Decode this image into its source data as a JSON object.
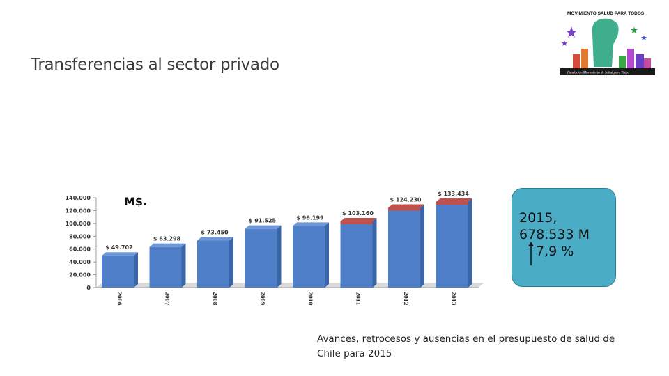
{
  "slide": {
    "title": "Transferencias al sector privado",
    "caption": "Avances, retrocesos y ausencias en el presupuesto de salud de Chile para 2015"
  },
  "logo": {
    "text_top": "MOVIMIENTO SALUD PARA TODOS",
    "text_bottom": "Fundación Movimiento de Salud para Todos"
  },
  "callout": {
    "line1": "2015,",
    "line2": "678.533 M",
    "line3": "7,9 %",
    "arrow_icon": "up-arrow-icon"
  },
  "colors": {
    "bar_blue": "#4f7fc9",
    "bar_blue_dark": "#3a66a8",
    "bar_red_top": "#c0504d",
    "callout_bg": "#4bacc6"
  },
  "chart_data": {
    "type": "bar",
    "unit_label": "M$.",
    "categories": [
      "2006",
      "2007",
      "2008",
      "2009",
      "2010",
      "2011",
      "2012",
      "2013"
    ],
    "values": [
      49702,
      63298,
      73450,
      91525,
      96199,
      103160,
      124230,
      133434
    ],
    "data_labels": [
      "$ 49.702",
      "$ 63.298",
      "$ 73.450",
      "$ 91.525",
      "$ 96.199",
      "$ 103.160",
      "$ 124.230",
      "$ 133.434"
    ],
    "red_top": [
      false,
      false,
      false,
      false,
      false,
      true,
      true,
      true
    ],
    "y_ticks": [
      "0",
      "20.000",
      "40.000",
      "60.000",
      "80.000",
      "100.000",
      "120.000",
      "140.000"
    ],
    "ylim": [
      0,
      140000
    ],
    "grid": false
  }
}
